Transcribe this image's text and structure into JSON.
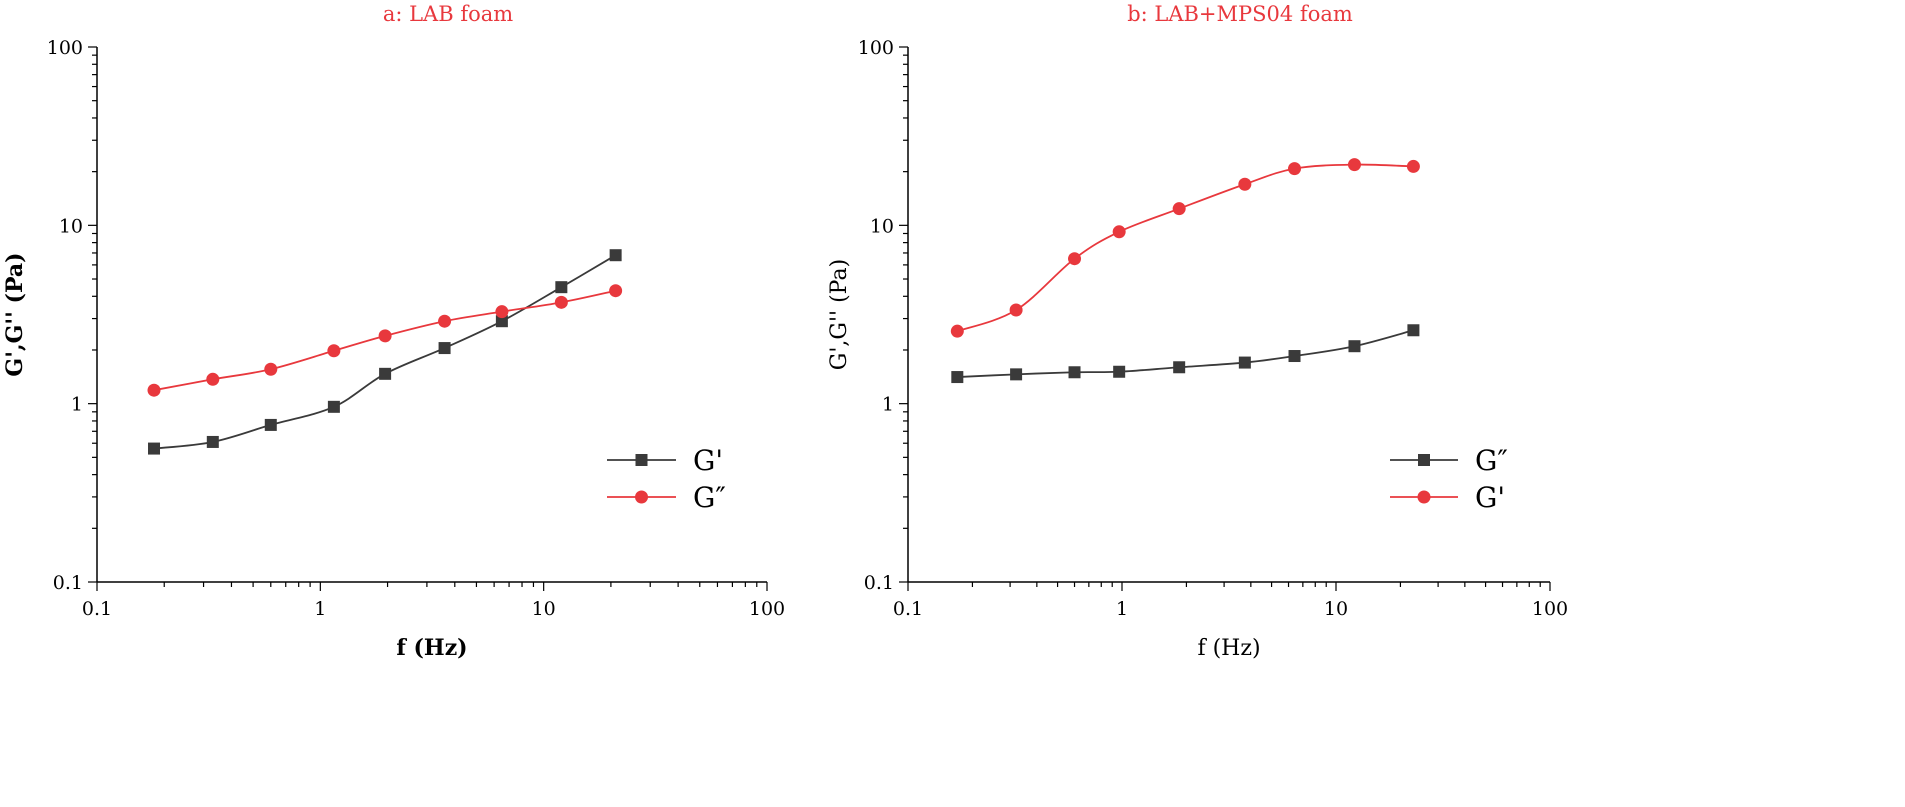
{
  "chart_data": [
    {
      "type": "line",
      "title": "a: LAB foam",
      "xlabel": "f (Hz)",
      "ylabel": "G',G'' (Pa)",
      "label_style": "bold",
      "xscale": "log",
      "yscale": "log",
      "xlim": [
        0.1,
        100
      ],
      "ylim": [
        0.1,
        100
      ],
      "xticks": [
        0.1,
        1,
        10,
        100
      ],
      "xtick_labels": [
        "0.1",
        "1",
        "10",
        "100"
      ],
      "yticks": [
        0.1,
        1,
        10,
        100
      ],
      "ytick_labels": [
        "0.1",
        "1",
        "10",
        "100"
      ],
      "legend_position": "lower-right",
      "series": [
        {
          "name": "G'",
          "marker": "square",
          "color": "#3a3a3a",
          "x": [
            0.18,
            0.33,
            0.6,
            1.15,
            1.95,
            3.6,
            6.5,
            12,
            21
          ],
          "values": [
            0.56,
            0.61,
            0.76,
            0.96,
            1.47,
            2.05,
            2.9,
            4.5,
            6.8
          ]
        },
        {
          "name": "G″",
          "marker": "circle",
          "color": "#e8383d",
          "x": [
            0.18,
            0.33,
            0.6,
            1.15,
            1.95,
            3.6,
            6.5,
            12,
            21
          ],
          "values": [
            1.19,
            1.37,
            1.56,
            1.98,
            2.4,
            2.9,
            3.28,
            3.7,
            4.3
          ]
        }
      ]
    },
    {
      "type": "line",
      "title": "b: LAB+MPS04 foam",
      "xlabel": "f (Hz)",
      "ylabel": "G',G'' (Pa)",
      "label_style": "plain",
      "xscale": "log",
      "yscale": "log",
      "xlim": [
        0.1,
        100
      ],
      "ylim": [
        0.1,
        100
      ],
      "xticks": [
        0.1,
        1,
        10,
        100
      ],
      "xtick_labels": [
        "0.1",
        "1",
        "10",
        "100"
      ],
      "yticks": [
        0.1,
        1,
        10,
        100
      ],
      "ytick_labels": [
        "0.1",
        "1",
        "10",
        "100"
      ],
      "legend_position": "lower-right",
      "series": [
        {
          "name": "G″",
          "marker": "square",
          "color": "#3a3a3a",
          "x": [
            0.17,
            0.32,
            0.6,
            0.97,
            1.85,
            3.75,
            6.4,
            12.2,
            23
          ],
          "values": [
            1.41,
            1.46,
            1.5,
            1.51,
            1.6,
            1.7,
            1.85,
            2.1,
            2.58
          ]
        },
        {
          "name": "G'",
          "marker": "circle",
          "color": "#e8383d",
          "x": [
            0.17,
            0.32,
            0.6,
            0.97,
            1.85,
            3.75,
            6.4,
            12.2,
            23
          ],
          "values": [
            2.55,
            3.35,
            6.5,
            9.2,
            12.4,
            17,
            20.8,
            21.9,
            21.4
          ]
        }
      ]
    }
  ]
}
